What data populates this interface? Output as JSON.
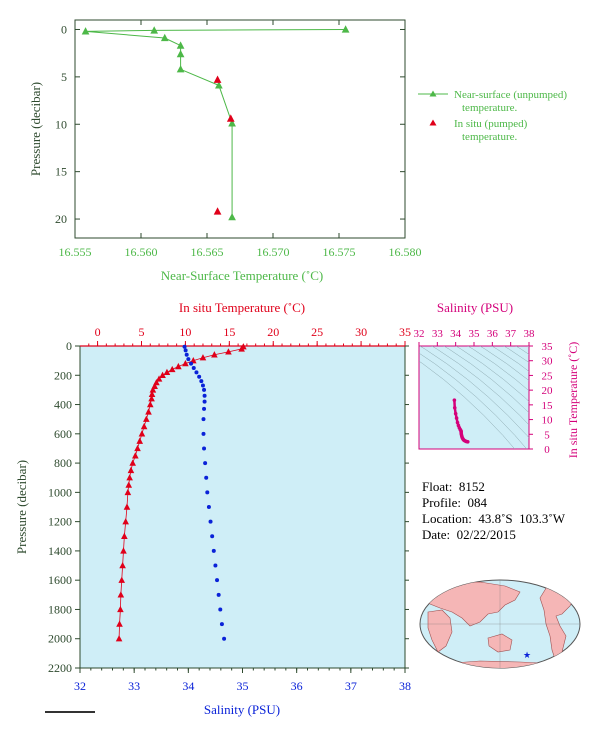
{
  "colors": {
    "green": "#4db848",
    "dark": "#2e4a2e",
    "red": "#e0001a",
    "blue": "#0a22d8",
    "magenta": "#d4007a",
    "panel_bg": "#cfeef7",
    "land": "#f5b6b6",
    "ocean": "#cfeef7"
  },
  "chart_data": [
    {
      "type": "line",
      "xlabel": "Near-Surface Temperature (˚C)",
      "ylabel": "Pressure (decibar)",
      "xlim": [
        16.555,
        16.58
      ],
      "ylim": [
        22,
        -1
      ],
      "xticks": [
        "16.555",
        "16.560",
        "16.565",
        "16.570",
        "16.575",
        "16.580"
      ],
      "yticks": [
        "0",
        "5",
        "10",
        "15",
        "20"
      ],
      "series": [
        {
          "name": "Near-surface (unpumped) temperature.",
          "marker": "triangle",
          "points": [
            [
              16.5755,
              0.0
            ],
            [
              16.561,
              0.1
            ],
            [
              16.5558,
              0.2
            ],
            [
              16.5618,
              0.9
            ],
            [
              16.563,
              1.7
            ],
            [
              16.563,
              2.6
            ],
            [
              16.563,
              4.2
            ],
            [
              16.5659,
              5.9
            ],
            [
              16.5669,
              9.9
            ],
            [
              16.5669,
              19.8
            ]
          ]
        },
        {
          "name": "In situ (pumped) temperature.",
          "marker": "triangle",
          "points": [
            [
              16.5658,
              5.3
            ],
            [
              16.5668,
              9.4
            ],
            [
              16.5658,
              19.2
            ]
          ]
        }
      ],
      "legend": "right"
    },
    {
      "type": "scatter",
      "top_xlabel": "In situ Temperature (˚C)",
      "xlabel": "Salinity (PSU)",
      "ylabel": "Pressure (decibar)",
      "temp_xlim": [
        -2,
        35
      ],
      "temp_xticks": [
        "0",
        "5",
        "10",
        "15",
        "20",
        "25",
        "30",
        "35"
      ],
      "sal_xlim": [
        32,
        38
      ],
      "sal_xticks": [
        "32",
        "33",
        "34",
        "35",
        "36",
        "37",
        "38"
      ],
      "ylim": [
        2200,
        0
      ],
      "yticks": [
        "0",
        "200",
        "400",
        "600",
        "800",
        "1000",
        "1200",
        "1400",
        "1600",
        "1800",
        "2000",
        "2200"
      ],
      "temperature_profile": [
        [
          16.6,
          5
        ],
        [
          16.4,
          20
        ],
        [
          14.9,
          40
        ],
        [
          13.3,
          60
        ],
        [
          12.0,
          80
        ],
        [
          10.9,
          100
        ],
        [
          10.0,
          120
        ],
        [
          9.2,
          140
        ],
        [
          8.5,
          160
        ],
        [
          7.9,
          180
        ],
        [
          7.4,
          200
        ],
        [
          7.0,
          225
        ],
        [
          6.7,
          250
        ],
        [
          6.5,
          275
        ],
        [
          6.3,
          300
        ],
        [
          6.2,
          330
        ],
        [
          6.15,
          360
        ],
        [
          6.0,
          400
        ],
        [
          5.8,
          450
        ],
        [
          5.55,
          500
        ],
        [
          5.3,
          550
        ],
        [
          5.05,
          600
        ],
        [
          4.8,
          650
        ],
        [
          4.55,
          700
        ],
        [
          4.3,
          750
        ],
        [
          4.0,
          800
        ],
        [
          3.8,
          850
        ],
        [
          3.65,
          900
        ],
        [
          3.55,
          950
        ],
        [
          3.45,
          1000
        ],
        [
          3.35,
          1100
        ],
        [
          3.2,
          1200
        ],
        [
          3.05,
          1300
        ],
        [
          2.95,
          1400
        ],
        [
          2.85,
          1500
        ],
        [
          2.75,
          1600
        ],
        [
          2.65,
          1700
        ],
        [
          2.6,
          1800
        ],
        [
          2.5,
          1900
        ],
        [
          2.45,
          2000
        ]
      ],
      "salinity_profile": [
        [
          33.93,
          5
        ],
        [
          33.95,
          30
        ],
        [
          33.97,
          60
        ],
        [
          34.0,
          90
        ],
        [
          34.05,
          120
        ],
        [
          34.1,
          150
        ],
        [
          34.15,
          180
        ],
        [
          34.2,
          210
        ],
        [
          34.24,
          240
        ],
        [
          34.27,
          270
        ],
        [
          34.29,
          300
        ],
        [
          34.3,
          340
        ],
        [
          34.3,
          380
        ],
        [
          34.29,
          430
        ],
        [
          34.28,
          500
        ],
        [
          34.28,
          600
        ],
        [
          34.29,
          700
        ],
        [
          34.31,
          800
        ],
        [
          34.33,
          900
        ],
        [
          34.35,
          1000
        ],
        [
          34.38,
          1100
        ],
        [
          34.41,
          1200
        ],
        [
          34.44,
          1300
        ],
        [
          34.47,
          1400
        ],
        [
          34.5,
          1500
        ],
        [
          34.53,
          1600
        ],
        [
          34.56,
          1700
        ],
        [
          34.59,
          1800
        ],
        [
          34.62,
          1900
        ],
        [
          34.66,
          2000
        ]
      ]
    },
    {
      "type": "scatter",
      "title": "Salinity (PSU)",
      "ylabel": "In situ Temperature (˚C)",
      "xlim": [
        32,
        38
      ],
      "xticks": [
        "32",
        "33",
        "34",
        "35",
        "36",
        "37",
        "38"
      ],
      "ylim": [
        0,
        35
      ],
      "yticks": [
        "0",
        "5",
        "10",
        "15",
        "20",
        "25",
        "30",
        "35"
      ],
      "points": [
        [
          33.93,
          16.6
        ],
        [
          33.95,
          14.0
        ],
        [
          34.0,
          12.0
        ],
        [
          34.05,
          10.5
        ],
        [
          34.1,
          9.0
        ],
        [
          34.15,
          8.0
        ],
        [
          34.2,
          7.2
        ],
        [
          34.25,
          6.6
        ],
        [
          34.29,
          6.2
        ],
        [
          34.3,
          5.9
        ],
        [
          34.3,
          5.5
        ],
        [
          34.31,
          5.0
        ],
        [
          34.33,
          4.5
        ],
        [
          34.35,
          4.0
        ],
        [
          34.38,
          3.6
        ],
        [
          34.41,
          3.3
        ],
        [
          34.45,
          3.0
        ],
        [
          34.5,
          2.8
        ],
        [
          34.56,
          2.6
        ],
        [
          34.62,
          2.5
        ],
        [
          34.66,
          2.45
        ]
      ]
    }
  ],
  "float_info": {
    "float": "Float:  8152",
    "profile": "Profile:  084",
    "location": "Location:  43.8˚S  103.3˚W",
    "date": "Date:  02/22/2015"
  },
  "map": {
    "marker_symbol": "★"
  }
}
